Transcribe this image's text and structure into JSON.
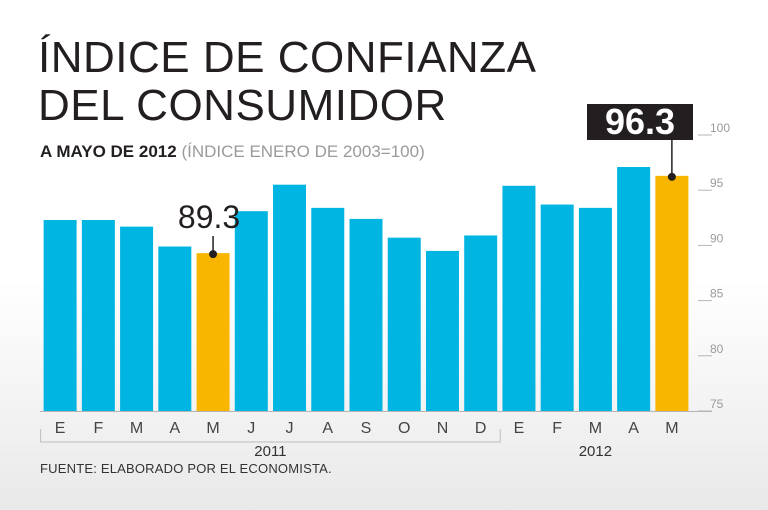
{
  "header": {
    "title_line1": "ÍNDICE DE CONFIANZA",
    "title_line2": "DEL CONSUMIDOR",
    "subtitle_bold": "A MAYO DE 2012",
    "subtitle_light": "(ÍNDICE ENERO DE 2003=100)"
  },
  "footer": {
    "source": "FUENTE: ELABORADO POR EL ECONOMISTA."
  },
  "colors": {
    "bar": "#00b5e2",
    "highlight": "#f9b600",
    "label_box": "#231f20"
  },
  "chart_data": {
    "type": "bar",
    "title": "ÍNDICE DE CONFIANZA DEL CONSUMIDOR",
    "subtitle": "A MAYO DE 2012 (ÍNDICE ENERO DE 2003=100)",
    "categories": [
      "E",
      "F",
      "M",
      "A",
      "M",
      "J",
      "J",
      "A",
      "S",
      "O",
      "N",
      "D",
      "E",
      "F",
      "M",
      "A",
      "M"
    ],
    "values": [
      92.3,
      92.3,
      91.7,
      89.9,
      89.3,
      93.1,
      95.5,
      93.4,
      92.4,
      90.7,
      89.5,
      90.9,
      95.4,
      93.7,
      93.4,
      97.1,
      96.3
    ],
    "highlight_indices": [
      4,
      16
    ],
    "ylim": [
      75,
      100
    ],
    "yticks": [
      75,
      80,
      85,
      90,
      95,
      100
    ],
    "groups": [
      {
        "label": "2011",
        "start": 0,
        "end": 11
      },
      {
        "label": "2012",
        "start": 12,
        "end": 16
      }
    ],
    "annotations": [
      {
        "index": 4,
        "text": "89.3",
        "style": "plain"
      },
      {
        "index": 16,
        "text": "96.3",
        "style": "boxed"
      }
    ],
    "xlabel": "",
    "ylabel": ""
  }
}
